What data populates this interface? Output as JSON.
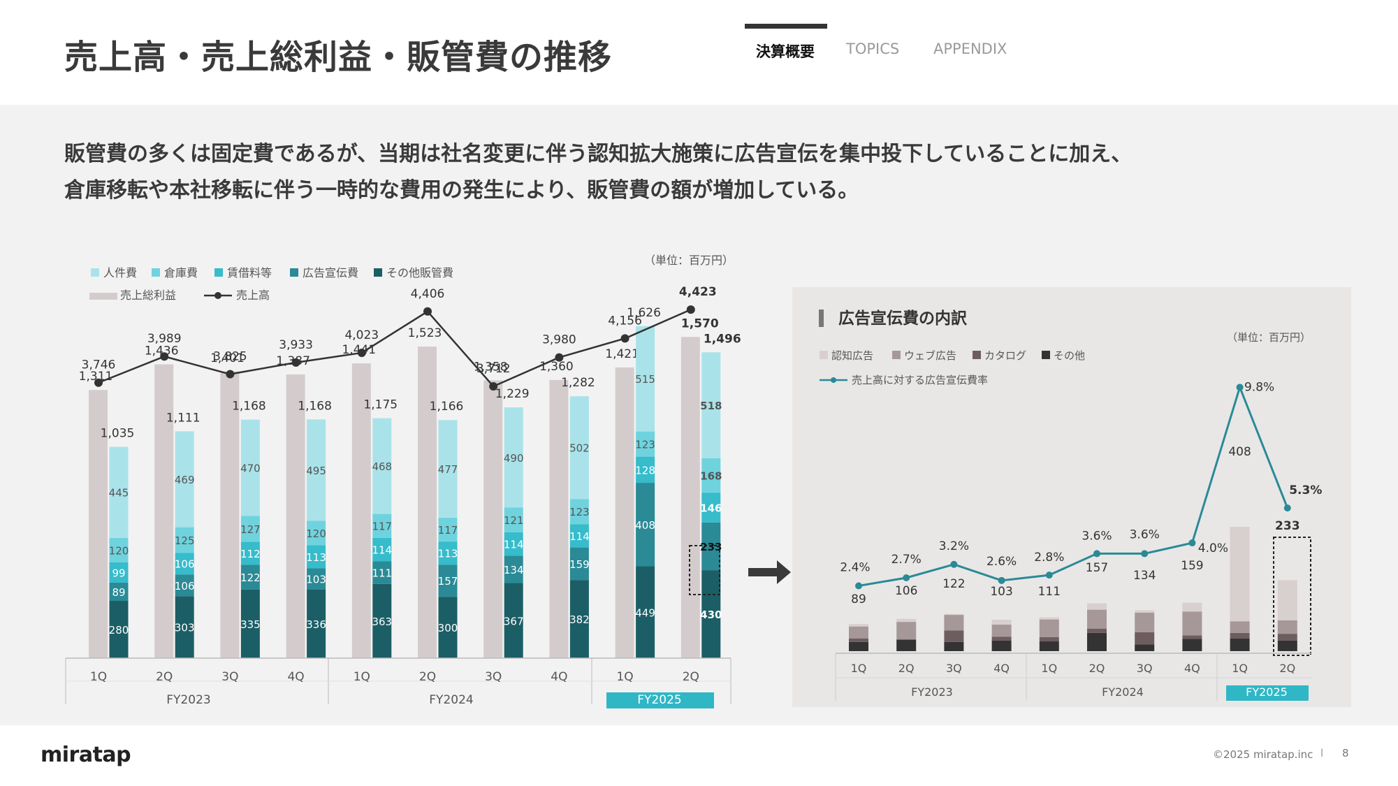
{
  "header": {
    "title": "売上高・売上総利益・販管費の推移",
    "tabs": [
      {
        "label": "決算概要",
        "active": true
      },
      {
        "label": "TOPICS",
        "active": false
      },
      {
        "label": "APPENDIX",
        "active": false
      }
    ]
  },
  "lead": {
    "line1": "販管費の多くは固定費であるが、当期は社名変更に伴う認知拡大施策に広告宣伝を集中投下していることに加え、",
    "line2": "倉庫移転や本社移転に伴う一時的な費用の発生により、販管費の額が増加している。"
  },
  "footer": {
    "logo": "miratap",
    "copyright": "©2025 miratap.inc",
    "separator": "l",
    "page": "8"
  },
  "chart_data": [
    {
      "type": "bar",
      "unit_label": "（単位：百万円）",
      "legend": [
        "人件費",
        "倉庫費",
        "賃借料等",
        "広告宣伝費",
        "その他販管費",
        "売上総利益",
        "売上高"
      ],
      "categories": [
        "1Q",
        "2Q",
        "3Q",
        "4Q",
        "1Q",
        "2Q",
        "3Q",
        "4Q",
        "1Q",
        "2Q"
      ],
      "groups": [
        {
          "label": "FY2023",
          "count": 4,
          "highlight": false
        },
        {
          "label": "FY2024",
          "count": 4,
          "highlight": false
        },
        {
          "label": "FY2025",
          "count": 2,
          "highlight": true
        }
      ],
      "sales": {
        "name": "売上高",
        "values": [
          3746,
          3989,
          3825,
          3933,
          4023,
          4406,
          3712,
          3980,
          4156,
          4423
        ],
        "labels": [
          "3,746",
          "3,989",
          "3,825",
          "3,933",
          "4,023",
          "4,406",
          "3,712",
          "3,980",
          "4,156",
          "4,423"
        ]
      },
      "gross_profit": {
        "name": "売上総利益",
        "values": [
          1311,
          1436,
          1401,
          1387,
          1441,
          1523,
          1358,
          1360,
          1421,
          1570
        ],
        "labels": [
          "1,311",
          "1,436",
          "1,401",
          "1,387",
          "1,441",
          "1,523",
          "1,358",
          "1,360",
          "1,421",
          "1,570"
        ]
      },
      "sga_total_labels": [
        "1,035",
        "1,111",
        "1,168",
        "1,168",
        "1,175",
        "1,166",
        "1,229",
        "1,282",
        "1,626",
        "1,496"
      ],
      "sga_series": [
        {
          "name": "その他販管費",
          "color": "#1b5e66",
          "values": [
            280,
            303,
            335,
            336,
            363,
            300,
            367,
            382,
            449,
            430
          ],
          "labels": [
            "280",
            "303",
            "335",
            "336",
            "363",
            "300",
            "367",
            "382",
            "449",
            "430"
          ]
        },
        {
          "name": "広告宣伝費",
          "color": "#2a8a96",
          "values": [
            89,
            106,
            122,
            103,
            111,
            157,
            134,
            159,
            408,
            233
          ],
          "labels": [
            "89",
            "106",
            "122",
            "103",
            "111",
            "157",
            "134",
            "159",
            "408",
            "233"
          ]
        },
        {
          "name": "賃借料等",
          "color": "#36bccb",
          "values": [
            99,
            106,
            112,
            113,
            114,
            113,
            114,
            114,
            128,
            146
          ],
          "labels": [
            "99",
            "106",
            "112",
            "113",
            "114",
            "113",
            "114",
            "114",
            "128",
            "146"
          ]
        },
        {
          "name": "倉庫費",
          "color": "#6fd3de",
          "values": [
            120,
            125,
            127,
            120,
            117,
            117,
            121,
            123,
            123,
            168
          ],
          "labels": [
            "120",
            "125",
            "127",
            "120",
            "117",
            "117",
            "121",
            "123",
            "123",
            "168"
          ]
        },
        {
          "name": "人件費",
          "color": "#a9e3e9",
          "values": [
            445,
            469,
            470,
            495,
            468,
            477,
            490,
            502,
            515,
            518
          ],
          "labels": [
            "445",
            "469",
            "470",
            "495",
            "468",
            "477",
            "490",
            "502",
            "515",
            "518"
          ]
        }
      ],
      "colors": {
        "gross_profit": "#d4cccc",
        "sales_line": "#333333",
        "highlight": "#2fb7c6"
      }
    },
    {
      "type": "bar",
      "title": "広告宣伝費の内訳",
      "unit_label": "（単位：百万円）",
      "legend": [
        "認知広告",
        "ウェブ広告",
        "カタログ",
        "その他",
        "売上高に対する広告宣伝費率"
      ],
      "categories": [
        "1Q",
        "2Q",
        "3Q",
        "4Q",
        "1Q",
        "2Q",
        "3Q",
        "4Q",
        "1Q",
        "2Q"
      ],
      "groups": [
        {
          "label": "FY2023",
          "count": 4,
          "highlight": false
        },
        {
          "label": "FY2024",
          "count": 4,
          "highlight": false
        },
        {
          "label": "FY2025",
          "count": 2,
          "highlight": true
        }
      ],
      "totals": [
        89,
        106,
        122,
        103,
        111,
        157,
        134,
        159,
        408,
        233
      ],
      "total_labels": [
        "89",
        "106",
        "122",
        "103",
        "111",
        "157",
        "134",
        "159",
        "408",
        "233"
      ],
      "series": [
        {
          "name": "その他",
          "color": "#333333",
          "values": [
            30,
            38,
            30,
            35,
            32,
            60,
            22,
            40,
            42,
            35
          ]
        },
        {
          "name": "カタログ",
          "color": "#6e5d5f",
          "values": [
            12,
            0,
            38,
            12,
            14,
            14,
            40,
            12,
            18,
            22
          ]
        },
        {
          "name": "ウェブ広告",
          "color": "#a69898",
          "values": [
            39,
            58,
            51,
            40,
            58,
            62,
            64,
            78,
            38,
            44
          ]
        },
        {
          "name": "認知広告",
          "color": "#d8cfcf",
          "values": [
            8,
            10,
            3,
            16,
            7,
            21,
            8,
            29,
            310,
            132
          ]
        }
      ],
      "ratio": {
        "name": "売上高に対する広告宣伝費率",
        "color": "#2a8a96",
        "values": [
          2.4,
          2.7,
          3.2,
          2.6,
          2.8,
          3.6,
          3.6,
          4.0,
          9.8,
          5.3
        ],
        "labels": [
          "2.4%",
          "2.7%",
          "3.2%",
          "2.6%",
          "2.8%",
          "3.6%",
          "3.6%",
          "4.0%",
          "9.8%",
          "5.3%"
        ]
      }
    }
  ]
}
